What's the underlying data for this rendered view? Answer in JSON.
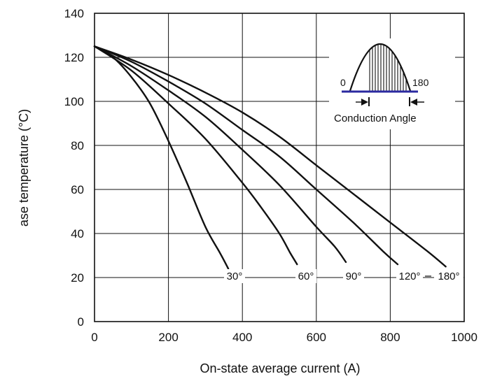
{
  "chart_data": {
    "type": "line",
    "xlabel": "On-state average current (A)",
    "ylabel": "ase temperature (°C)",
    "xlim": [
      0,
      1000
    ],
    "ylim": [
      0,
      140
    ],
    "x_ticks": [
      "0",
      "200",
      "400",
      "600",
      "800",
      "1000"
    ],
    "y_ticks": [
      "0",
      "20",
      "40",
      "60",
      "80",
      "100",
      "120",
      "140"
    ],
    "grid": true,
    "series": [
      {
        "name": "30°",
        "x": [
          0,
          50,
          100,
          150,
          200,
          250,
          300,
          340,
          362
        ],
        "y": [
          125,
          120,
          111,
          99,
          82,
          63,
          43,
          31,
          24
        ]
      },
      {
        "name": "60°",
        "x": [
          0,
          100,
          200,
          300,
          400,
          450,
          500,
          530,
          548
        ],
        "y": [
          125,
          114,
          99,
          83,
          63,
          52,
          40,
          31,
          26
        ]
      },
      {
        "name": "90°",
        "x": [
          0,
          100,
          200,
          300,
          400,
          500,
          600,
          650,
          680
        ],
        "y": [
          125,
          116,
          105,
          93,
          78,
          62,
          43,
          34,
          27
        ]
      },
      {
        "name": "120°",
        "x": [
          0,
          100,
          200,
          300,
          400,
          500,
          600,
          700,
          780,
          820
        ],
        "y": [
          125,
          118,
          109,
          99,
          87,
          75,
          60,
          45,
          32,
          26
        ]
      },
      {
        "name": "180°",
        "x": [
          0,
          100,
          200,
          300,
          400,
          500,
          600,
          700,
          800,
          900,
          950
        ],
        "y": [
          125,
          119,
          112,
          104,
          95,
          84,
          71,
          58,
          45,
          32,
          25
        ]
      }
    ],
    "curve_labels": [
      "30°",
      "60°",
      "90°",
      "120°",
      "180°"
    ],
    "inset": {
      "title": "Conduction Angle",
      "left_label": "0",
      "right_label": "180"
    }
  }
}
